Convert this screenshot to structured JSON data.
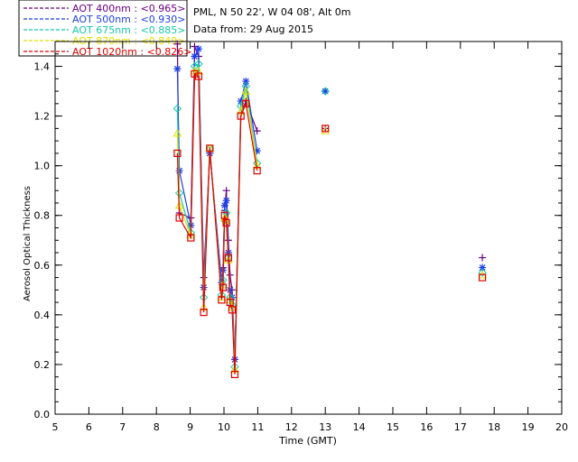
{
  "chart_data": {
    "type": "line",
    "header": {
      "line1": "PML, N 50 22', W 04 08', Alt 0m",
      "line2": "Data from: 29 Aug 2015"
    },
    "xlabel": "Time (GMT)",
    "ylabel": "Aerosol Optical Thickness",
    "xlim": [
      5,
      20
    ],
    "ylim": [
      0.0,
      1.5
    ],
    "xticks": [
      "5",
      "6",
      "7",
      "8",
      "9",
      "10",
      "11",
      "12",
      "13",
      "14",
      "15",
      "16",
      "17",
      "18",
      "19",
      "20"
    ],
    "yticks": [
      "0.0",
      "0.2",
      "0.4",
      "0.6",
      "0.8",
      "1.0",
      "1.2",
      "1.4"
    ],
    "series": [
      {
        "name": "AOT  400nm : <0.965>",
        "color": "#6a0080",
        "marker": "plus",
        "x": [
          8.62,
          8.68,
          9.02,
          9.13,
          9.25,
          9.4,
          9.58,
          9.93,
          9.97,
          10.02,
          10.07,
          10.13,
          10.18,
          10.24,
          10.32,
          10.5,
          10.65,
          10.98,
          13.0,
          17.65
        ],
        "y": [
          1.49,
          0.81,
          0.79,
          1.48,
          1.44,
          0.55,
          1.06,
          0.53,
          0.59,
          0.82,
          0.9,
          0.7,
          0.56,
          0.5,
          0.22,
          1.21,
          1.26,
          1.14,
          1.15,
          0.63
        ]
      },
      {
        "name": "AOT  500nm : <0.930>",
        "color": "#1f3fe6",
        "marker": "star",
        "x": [
          8.62,
          8.68,
          9.02,
          9.13,
          9.25,
          9.4,
          9.58,
          9.93,
          9.97,
          10.02,
          10.07,
          10.13,
          10.18,
          10.24,
          10.32,
          10.5,
          10.65,
          10.98,
          13.0,
          17.65
        ],
        "y": [
          1.39,
          0.98,
          0.76,
          1.44,
          1.47,
          0.51,
          1.05,
          0.53,
          0.58,
          0.84,
          0.86,
          0.65,
          0.5,
          0.47,
          0.22,
          1.26,
          1.34,
          1.06,
          1.3,
          0.59
        ]
      },
      {
        "name": "AOT  675nm : <0.885>",
        "color": "#18c8a8",
        "marker": "diamond",
        "x": [
          8.62,
          8.68,
          9.02,
          9.13,
          9.25,
          9.4,
          9.58,
          9.93,
          9.97,
          10.02,
          10.07,
          10.13,
          10.18,
          10.24,
          10.32,
          10.5,
          10.65,
          10.98,
          13.0,
          17.65
        ],
        "y": [
          1.23,
          0.89,
          0.73,
          1.4,
          1.41,
          0.47,
          1.07,
          0.48,
          0.54,
          0.78,
          0.81,
          0.63,
          0.47,
          0.44,
          0.19,
          1.24,
          1.32,
          1.01,
          1.3,
          0.57
        ]
      },
      {
        "name": "AOT  870nm : <0.849>",
        "color": "#e0e000",
        "marker": "triangle",
        "x": [
          8.62,
          8.68,
          9.02,
          9.13,
          9.25,
          9.4,
          9.58,
          9.93,
          9.97,
          10.02,
          10.07,
          10.13,
          10.18,
          10.24,
          10.32,
          10.5,
          10.65,
          10.98,
          13.0,
          17.65
        ],
        "y": [
          1.13,
          0.84,
          0.72,
          1.38,
          1.38,
          0.43,
          1.07,
          0.47,
          0.52,
          0.79,
          0.78,
          0.62,
          0.46,
          0.43,
          0.18,
          1.22,
          1.3,
          1.0,
          1.14,
          0.56
        ]
      },
      {
        "name": "AOT 1020nm : <0.826>",
        "color": "#e00000",
        "marker": "square",
        "x": [
          8.62,
          8.68,
          9.02,
          9.13,
          9.25,
          9.4,
          9.58,
          9.93,
          9.97,
          10.02,
          10.07,
          10.13,
          10.18,
          10.24,
          10.32,
          10.5,
          10.65,
          10.98,
          13.0,
          17.65
        ],
        "y": [
          1.05,
          0.79,
          0.71,
          1.37,
          1.36,
          0.41,
          1.07,
          0.46,
          0.51,
          0.8,
          0.77,
          0.63,
          0.45,
          0.42,
          0.16,
          1.2,
          1.25,
          0.98,
          1.15,
          0.55
        ]
      }
    ]
  }
}
